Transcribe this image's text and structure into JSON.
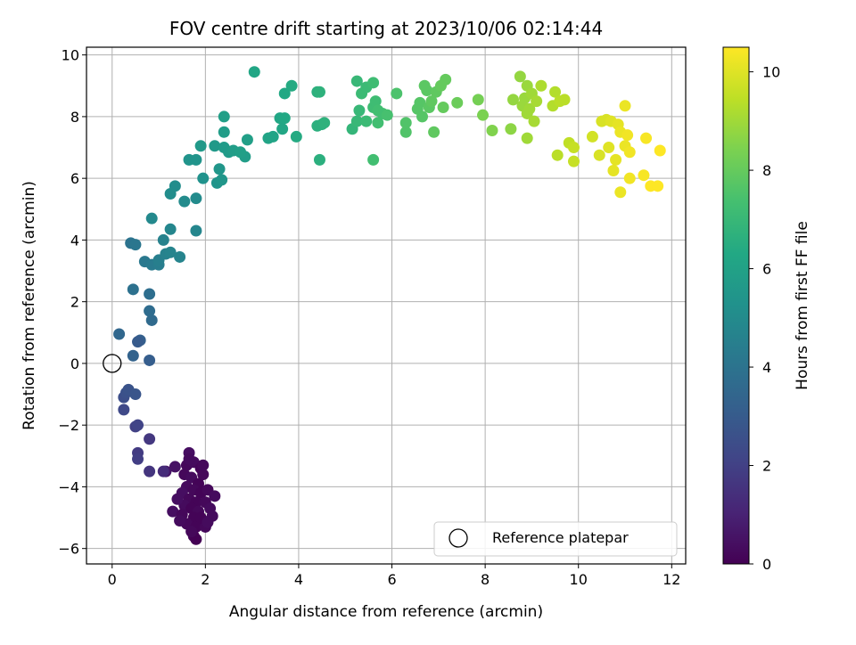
{
  "chart_data": {
    "type": "scatter",
    "title": "FOV centre drift starting at 2023/10/06 02:14:44",
    "xlabel": "Angular distance from reference (arcmin)",
    "ylabel": "Rotation from reference (arcmin)",
    "xlim": [
      -0.55,
      12.3
    ],
    "ylim": [
      -6.5,
      10.25
    ],
    "xticks": [
      0,
      2,
      4,
      6,
      8,
      10,
      12
    ],
    "yticks": [
      -6,
      -4,
      -2,
      0,
      2,
      4,
      6,
      8,
      10
    ],
    "xtick_labels": [
      "0",
      "2",
      "4",
      "6",
      "8",
      "10",
      "12"
    ],
    "ytick_labels": [
      "−6",
      "−4",
      "−2",
      "0",
      "2",
      "4",
      "6",
      "8",
      "10"
    ],
    "grid": true,
    "legend": {
      "label": "Reference platepar",
      "placement": "lower-right"
    },
    "reference_point": {
      "x": 0,
      "y": 0
    },
    "colorbar": {
      "label": "Hours from first FF file",
      "min": 0,
      "max": 10.5,
      "ticks": [
        0,
        2,
        4,
        6,
        8,
        10
      ],
      "tick_labels": [
        "0",
        "2",
        "4",
        "6",
        "8",
        "10"
      ],
      "colormap": "viridis"
    },
    "points": [
      {
        "x": 1.6,
        "y": -3.3,
        "t": 0.2
      },
      {
        "x": 1.75,
        "y": -3.2,
        "t": 0.3
      },
      {
        "x": 1.9,
        "y": -3.4,
        "t": 0.1
      },
      {
        "x": 1.65,
        "y": -2.9,
        "t": 0.4
      },
      {
        "x": 1.55,
        "y": -3.6,
        "t": 0.2
      },
      {
        "x": 1.35,
        "y": -3.35,
        "t": 0.5
      },
      {
        "x": 1.15,
        "y": -3.5,
        "t": 0.6
      },
      {
        "x": 1.7,
        "y": -3.7,
        "t": 0.3
      },
      {
        "x": 1.85,
        "y": -3.9,
        "t": 0.1
      },
      {
        "x": 1.95,
        "y": -3.6,
        "t": 0.2
      },
      {
        "x": 1.6,
        "y": -4.0,
        "t": 0.3
      },
      {
        "x": 1.5,
        "y": -4.2,
        "t": 0.4
      },
      {
        "x": 1.75,
        "y": -4.1,
        "t": 0.2
      },
      {
        "x": 1.9,
        "y": -4.2,
        "t": 0.1
      },
      {
        "x": 2.05,
        "y": -4.1,
        "t": 0.2
      },
      {
        "x": 2.2,
        "y": -4.3,
        "t": 0.3
      },
      {
        "x": 1.65,
        "y": -4.4,
        "t": 0.2
      },
      {
        "x": 1.8,
        "y": -4.5,
        "t": 0.1
      },
      {
        "x": 1.55,
        "y": -4.6,
        "t": 0.3
      },
      {
        "x": 1.4,
        "y": -4.4,
        "t": 0.4
      },
      {
        "x": 2.0,
        "y": -4.5,
        "t": 0.2
      },
      {
        "x": 1.7,
        "y": -4.7,
        "t": 0.1
      },
      {
        "x": 1.85,
        "y": -4.8,
        "t": 0.2
      },
      {
        "x": 2.1,
        "y": -4.7,
        "t": 0.3
      },
      {
        "x": 1.3,
        "y": -4.8,
        "t": 0.4
      },
      {
        "x": 1.5,
        "y": -4.9,
        "t": 0.2
      },
      {
        "x": 1.75,
        "y": -5.0,
        "t": 0.1
      },
      {
        "x": 1.95,
        "y": -5.1,
        "t": 0.2
      },
      {
        "x": 2.15,
        "y": -4.95,
        "t": 0.3
      },
      {
        "x": 1.6,
        "y": -5.2,
        "t": 0.2
      },
      {
        "x": 1.8,
        "y": -5.3,
        "t": 0.1
      },
      {
        "x": 2.0,
        "y": -5.3,
        "t": 0.2
      },
      {
        "x": 1.45,
        "y": -5.1,
        "t": 0.3
      },
      {
        "x": 1.9,
        "y": -5.0,
        "t": 0.1
      },
      {
        "x": 1.75,
        "y": -5.6,
        "t": 0.1
      },
      {
        "x": 1.8,
        "y": -5.7,
        "t": 0.0
      },
      {
        "x": 1.65,
        "y": -3.1,
        "t": 0.3
      },
      {
        "x": 1.95,
        "y": -3.3,
        "t": 0.2
      },
      {
        "x": 1.7,
        "y": -5.45,
        "t": 0.2
      },
      {
        "x": 2.05,
        "y": -5.15,
        "t": 0.3
      },
      {
        "x": 1.1,
        "y": -3.5,
        "t": 1.3
      },
      {
        "x": 0.8,
        "y": -3.5,
        "t": 1.6
      },
      {
        "x": 0.8,
        "y": -2.45,
        "t": 1.7
      },
      {
        "x": 0.55,
        "y": -2.9,
        "t": 1.8
      },
      {
        "x": 0.55,
        "y": -3.1,
        "t": 1.9
      },
      {
        "x": 0.5,
        "y": -2.05,
        "t": 2.0
      },
      {
        "x": 0.55,
        "y": -2.0,
        "t": 2.1
      },
      {
        "x": 0.25,
        "y": -1.5,
        "t": 2.3
      },
      {
        "x": 0.25,
        "y": -1.1,
        "t": 2.5
      },
      {
        "x": 0.3,
        "y": -0.95,
        "t": 2.6
      },
      {
        "x": 0.35,
        "y": -0.85,
        "t": 2.7
      },
      {
        "x": 0.5,
        "y": -1.0,
        "t": 2.8
      },
      {
        "x": 0.8,
        "y": 0.1,
        "t": 3.1
      },
      {
        "x": 0.45,
        "y": 0.25,
        "t": 3.3
      },
      {
        "x": 0.15,
        "y": 0.95,
        "t": 3.5
      },
      {
        "x": 0.6,
        "y": 0.75,
        "t": 3.2
      },
      {
        "x": 0.55,
        "y": 0.7,
        "t": 3.0
      },
      {
        "x": 0.85,
        "y": 1.4,
        "t": 3.6
      },
      {
        "x": 0.8,
        "y": 1.7,
        "t": 3.7
      },
      {
        "x": 0.8,
        "y": 2.25,
        "t": 3.8
      },
      {
        "x": 0.45,
        "y": 2.4,
        "t": 3.9
      },
      {
        "x": 0.4,
        "y": 3.9,
        "t": 4.0
      },
      {
        "x": 0.5,
        "y": 3.85,
        "t": 4.1
      },
      {
        "x": 0.7,
        "y": 3.3,
        "t": 4.2
      },
      {
        "x": 0.85,
        "y": 3.2,
        "t": 4.3
      },
      {
        "x": 1.0,
        "y": 3.2,
        "t": 4.4
      },
      {
        "x": 1.0,
        "y": 3.35,
        "t": 4.5
      },
      {
        "x": 1.15,
        "y": 3.55,
        "t": 4.6
      },
      {
        "x": 1.25,
        "y": 3.6,
        "t": 4.7
      },
      {
        "x": 1.45,
        "y": 3.45,
        "t": 4.7
      },
      {
        "x": 1.1,
        "y": 4.0,
        "t": 4.6
      },
      {
        "x": 1.25,
        "y": 4.35,
        "t": 4.8
      },
      {
        "x": 0.85,
        "y": 4.7,
        "t": 4.9
      },
      {
        "x": 1.8,
        "y": 4.3,
        "t": 4.8
      },
      {
        "x": 1.55,
        "y": 5.25,
        "t": 5.0
      },
      {
        "x": 1.8,
        "y": 5.35,
        "t": 5.0
      },
      {
        "x": 1.25,
        "y": 5.5,
        "t": 5.1
      },
      {
        "x": 1.35,
        "y": 5.75,
        "t": 5.1
      },
      {
        "x": 1.65,
        "y": 6.6,
        "t": 5.4
      },
      {
        "x": 1.8,
        "y": 6.6,
        "t": 5.4
      },
      {
        "x": 1.95,
        "y": 6.0,
        "t": 5.3
      },
      {
        "x": 2.25,
        "y": 5.85,
        "t": 5.4
      },
      {
        "x": 2.35,
        "y": 5.95,
        "t": 5.5
      },
      {
        "x": 2.3,
        "y": 6.3,
        "t": 5.5
      },
      {
        "x": 1.9,
        "y": 7.05,
        "t": 5.6
      },
      {
        "x": 2.2,
        "y": 7.05,
        "t": 5.6
      },
      {
        "x": 2.4,
        "y": 7.0,
        "t": 5.7
      },
      {
        "x": 2.5,
        "y": 6.85,
        "t": 5.7
      },
      {
        "x": 2.6,
        "y": 6.9,
        "t": 5.8
      },
      {
        "x": 2.85,
        "y": 6.7,
        "t": 5.8
      },
      {
        "x": 2.75,
        "y": 6.85,
        "t": 5.9
      },
      {
        "x": 2.9,
        "y": 7.25,
        "t": 5.9
      },
      {
        "x": 2.4,
        "y": 7.5,
        "t": 5.8
      },
      {
        "x": 2.4,
        "y": 8.0,
        "t": 5.9
      },
      {
        "x": 3.35,
        "y": 7.3,
        "t": 6.1
      },
      {
        "x": 3.45,
        "y": 7.35,
        "t": 6.1
      },
      {
        "x": 3.65,
        "y": 7.6,
        "t": 6.2
      },
      {
        "x": 3.6,
        "y": 7.95,
        "t": 6.2
      },
      {
        "x": 3.7,
        "y": 7.95,
        "t": 6.3
      },
      {
        "x": 3.7,
        "y": 8.75,
        "t": 6.3
      },
      {
        "x": 3.95,
        "y": 7.35,
        "t": 6.4
      },
      {
        "x": 3.05,
        "y": 9.45,
        "t": 6.2
      },
      {
        "x": 3.85,
        "y": 9.0,
        "t": 6.4
      },
      {
        "x": 4.4,
        "y": 7.7,
        "t": 6.6
      },
      {
        "x": 4.5,
        "y": 7.75,
        "t": 6.6
      },
      {
        "x": 4.55,
        "y": 7.8,
        "t": 6.7
      },
      {
        "x": 4.4,
        "y": 8.8,
        "t": 6.6
      },
      {
        "x": 4.45,
        "y": 8.8,
        "t": 6.7
      },
      {
        "x": 4.45,
        "y": 6.6,
        "t": 6.6
      },
      {
        "x": 5.15,
        "y": 7.6,
        "t": 6.9
      },
      {
        "x": 5.25,
        "y": 7.85,
        "t": 7.0
      },
      {
        "x": 5.3,
        "y": 8.2,
        "t": 7.0
      },
      {
        "x": 5.25,
        "y": 9.15,
        "t": 7.0
      },
      {
        "x": 5.35,
        "y": 8.75,
        "t": 7.1
      },
      {
        "x": 5.45,
        "y": 8.95,
        "t": 7.1
      },
      {
        "x": 5.45,
        "y": 7.85,
        "t": 7.1
      },
      {
        "x": 5.6,
        "y": 8.3,
        "t": 7.2
      },
      {
        "x": 5.6,
        "y": 9.1,
        "t": 7.2
      },
      {
        "x": 5.65,
        "y": 8.5,
        "t": 7.2
      },
      {
        "x": 5.7,
        "y": 8.2,
        "t": 7.3
      },
      {
        "x": 5.7,
        "y": 7.8,
        "t": 7.3
      },
      {
        "x": 5.8,
        "y": 8.1,
        "t": 7.3
      },
      {
        "x": 5.9,
        "y": 8.05,
        "t": 7.4
      },
      {
        "x": 5.6,
        "y": 6.6,
        "t": 7.3
      },
      {
        "x": 6.1,
        "y": 8.75,
        "t": 7.5
      },
      {
        "x": 6.3,
        "y": 7.5,
        "t": 7.6
      },
      {
        "x": 6.3,
        "y": 7.8,
        "t": 7.6
      },
      {
        "x": 6.55,
        "y": 8.25,
        "t": 7.7
      },
      {
        "x": 6.6,
        "y": 8.45,
        "t": 7.7
      },
      {
        "x": 6.65,
        "y": 8.0,
        "t": 7.7
      },
      {
        "x": 6.75,
        "y": 8.85,
        "t": 7.8
      },
      {
        "x": 6.7,
        "y": 9.0,
        "t": 7.8
      },
      {
        "x": 6.8,
        "y": 8.3,
        "t": 7.8
      },
      {
        "x": 6.85,
        "y": 8.5,
        "t": 7.9
      },
      {
        "x": 6.9,
        "y": 7.5,
        "t": 7.9
      },
      {
        "x": 6.95,
        "y": 8.8,
        "t": 7.9
      },
      {
        "x": 7.05,
        "y": 9.0,
        "t": 8.0
      },
      {
        "x": 7.1,
        "y": 8.3,
        "t": 8.0
      },
      {
        "x": 7.15,
        "y": 9.2,
        "t": 8.0
      },
      {
        "x": 7.4,
        "y": 8.45,
        "t": 8.1
      },
      {
        "x": 7.85,
        "y": 8.55,
        "t": 8.3
      },
      {
        "x": 7.95,
        "y": 8.05,
        "t": 8.4
      },
      {
        "x": 8.15,
        "y": 7.55,
        "t": 8.5
      },
      {
        "x": 8.55,
        "y": 7.6,
        "t": 8.7
      },
      {
        "x": 8.6,
        "y": 8.55,
        "t": 8.8
      },
      {
        "x": 8.75,
        "y": 9.3,
        "t": 8.8
      },
      {
        "x": 8.8,
        "y": 8.35,
        "t": 8.9
      },
      {
        "x": 8.85,
        "y": 8.6,
        "t": 8.9
      },
      {
        "x": 8.9,
        "y": 9.0,
        "t": 8.9
      },
      {
        "x": 8.9,
        "y": 8.1,
        "t": 9.0
      },
      {
        "x": 8.95,
        "y": 8.25,
        "t": 9.0
      },
      {
        "x": 9.0,
        "y": 8.75,
        "t": 9.0
      },
      {
        "x": 9.05,
        "y": 7.85,
        "t": 9.1
      },
      {
        "x": 8.9,
        "y": 7.3,
        "t": 9.0
      },
      {
        "x": 9.1,
        "y": 8.5,
        "t": 9.1
      },
      {
        "x": 9.2,
        "y": 9.0,
        "t": 9.2
      },
      {
        "x": 9.45,
        "y": 8.35,
        "t": 9.3
      },
      {
        "x": 9.5,
        "y": 8.8,
        "t": 9.3
      },
      {
        "x": 9.55,
        "y": 6.75,
        "t": 9.4
      },
      {
        "x": 9.6,
        "y": 8.5,
        "t": 9.4
      },
      {
        "x": 9.7,
        "y": 8.55,
        "t": 9.4
      },
      {
        "x": 9.8,
        "y": 7.15,
        "t": 9.5
      },
      {
        "x": 9.9,
        "y": 6.55,
        "t": 9.6
      },
      {
        "x": 9.9,
        "y": 7.0,
        "t": 9.6
      },
      {
        "x": 10.3,
        "y": 7.35,
        "t": 9.8
      },
      {
        "x": 10.45,
        "y": 6.75,
        "t": 9.9
      },
      {
        "x": 10.5,
        "y": 7.85,
        "t": 9.9
      },
      {
        "x": 10.6,
        "y": 7.9,
        "t": 9.9
      },
      {
        "x": 10.65,
        "y": 7.0,
        "t": 10.0
      },
      {
        "x": 10.7,
        "y": 7.85,
        "t": 10.0
      },
      {
        "x": 10.75,
        "y": 6.25,
        "t": 10.1
      },
      {
        "x": 10.8,
        "y": 6.6,
        "t": 10.1
      },
      {
        "x": 10.85,
        "y": 7.75,
        "t": 10.1
      },
      {
        "x": 10.9,
        "y": 7.5,
        "t": 10.2
      },
      {
        "x": 10.9,
        "y": 5.55,
        "t": 10.2
      },
      {
        "x": 11.0,
        "y": 8.35,
        "t": 10.2
      },
      {
        "x": 11.0,
        "y": 7.05,
        "t": 10.2
      },
      {
        "x": 11.05,
        "y": 7.4,
        "t": 10.3
      },
      {
        "x": 11.1,
        "y": 6.85,
        "t": 10.3
      },
      {
        "x": 11.1,
        "y": 6.0,
        "t": 10.3
      },
      {
        "x": 11.4,
        "y": 6.1,
        "t": 10.4
      },
      {
        "x": 11.45,
        "y": 7.3,
        "t": 10.4
      },
      {
        "x": 11.55,
        "y": 5.75,
        "t": 10.5
      },
      {
        "x": 11.7,
        "y": 5.75,
        "t": 10.5
      },
      {
        "x": 11.75,
        "y": 6.9,
        "t": 10.5
      }
    ]
  }
}
